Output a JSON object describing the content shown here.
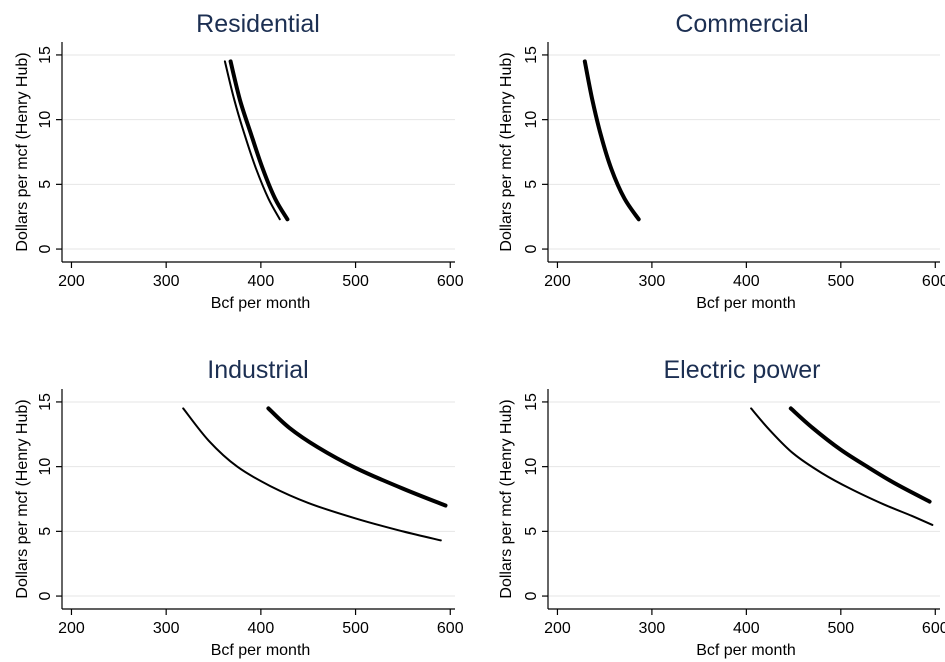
{
  "figure": {
    "line_color": "#000000",
    "title_color": "#1c2f52",
    "grid_color": "#e6e6e6"
  },
  "chart_data": [
    {
      "type": "line",
      "title": "Residential",
      "xlabel": "Bcf per month",
      "ylabel": "Dollars per mcf (Henry Hub)",
      "xlim": [
        190,
        605
      ],
      "ylim": [
        -1,
        16
      ],
      "xticks": [
        200,
        300,
        400,
        500,
        600
      ],
      "yticks": [
        0,
        5,
        10,
        15
      ],
      "grid": true,
      "legend": "none",
      "series": [
        {
          "style": "thin",
          "points": [
            [
              362,
              14.5
            ],
            [
              372,
              11.5
            ],
            [
              383,
              8.8
            ],
            [
              395,
              6.2
            ],
            [
              408,
              3.9
            ],
            [
              420,
              2.3
            ]
          ]
        },
        {
          "style": "thick",
          "points": [
            [
              368,
              14.5
            ],
            [
              378,
              11.5
            ],
            [
              390,
              8.8
            ],
            [
              402,
              6.2
            ],
            [
              415,
              3.9
            ],
            [
              428,
              2.3
            ]
          ]
        }
      ]
    },
    {
      "type": "line",
      "title": "Commercial",
      "xlabel": "Bcf per month",
      "ylabel": "Dollars per mcf (Henry Hub)",
      "xlim": [
        190,
        605
      ],
      "ylim": [
        -1,
        16
      ],
      "xticks": [
        200,
        300,
        400,
        500,
        600
      ],
      "yticks": [
        0,
        5,
        10,
        15
      ],
      "grid": true,
      "legend": "none",
      "series": [
        {
          "style": "thin",
          "points": [
            [
              229,
              14.5
            ],
            [
              237,
              11.5
            ],
            [
              246,
              8.8
            ],
            [
              257,
              6.2
            ],
            [
              271,
              3.9
            ],
            [
              286,
              2.3
            ]
          ]
        },
        {
          "style": "thick",
          "points": [
            [
              229,
              14.5
            ],
            [
              237,
              11.5
            ],
            [
              246,
              8.8
            ],
            [
              257,
              6.2
            ],
            [
              271,
              3.9
            ],
            [
              286,
              2.3
            ]
          ]
        }
      ]
    },
    {
      "type": "line",
      "title": "Industrial",
      "xlabel": "Bcf per month",
      "ylabel": "Dollars per mcf (Henry Hub)",
      "xlim": [
        190,
        605
      ],
      "ylim": [
        -1,
        16
      ],
      "xticks": [
        200,
        300,
        400,
        500,
        600
      ],
      "yticks": [
        0,
        5,
        10,
        15
      ],
      "grid": true,
      "legend": "none",
      "series": [
        {
          "style": "thin",
          "points": [
            [
              318,
              14.5
            ],
            [
              345,
              12.0
            ],
            [
              375,
              10.0
            ],
            [
              410,
              8.5
            ],
            [
              450,
              7.2
            ],
            [
              500,
              6.0
            ],
            [
              550,
              5.0
            ],
            [
              590,
              4.3
            ]
          ]
        },
        {
          "style": "thick",
          "points": [
            [
              408,
              14.5
            ],
            [
              430,
              13.0
            ],
            [
              460,
              11.5
            ],
            [
              500,
              9.9
            ],
            [
              550,
              8.3
            ],
            [
              595,
              7.0
            ]
          ]
        }
      ]
    },
    {
      "type": "line",
      "title": "Electric power",
      "xlabel": "Bcf per month",
      "ylabel": "Dollars per mcf (Henry Hub)",
      "xlim": [
        190,
        605
      ],
      "ylim": [
        -1,
        16
      ],
      "xticks": [
        200,
        300,
        400,
        500,
        600
      ],
      "yticks": [
        0,
        5,
        10,
        15
      ],
      "grid": true,
      "legend": "none",
      "series": [
        {
          "style": "thin",
          "points": [
            [
              405,
              14.5
            ],
            [
              425,
              12.8
            ],
            [
              450,
              11.0
            ],
            [
              480,
              9.5
            ],
            [
              510,
              8.3
            ],
            [
              545,
              7.1
            ],
            [
              575,
              6.2
            ],
            [
              597,
              5.5
            ]
          ]
        },
        {
          "style": "thick",
          "points": [
            [
              447,
              14.5
            ],
            [
              470,
              13.0
            ],
            [
              500,
              11.3
            ],
            [
              530,
              9.9
            ],
            [
              560,
              8.6
            ],
            [
              594,
              7.3
            ]
          ]
        }
      ]
    }
  ]
}
